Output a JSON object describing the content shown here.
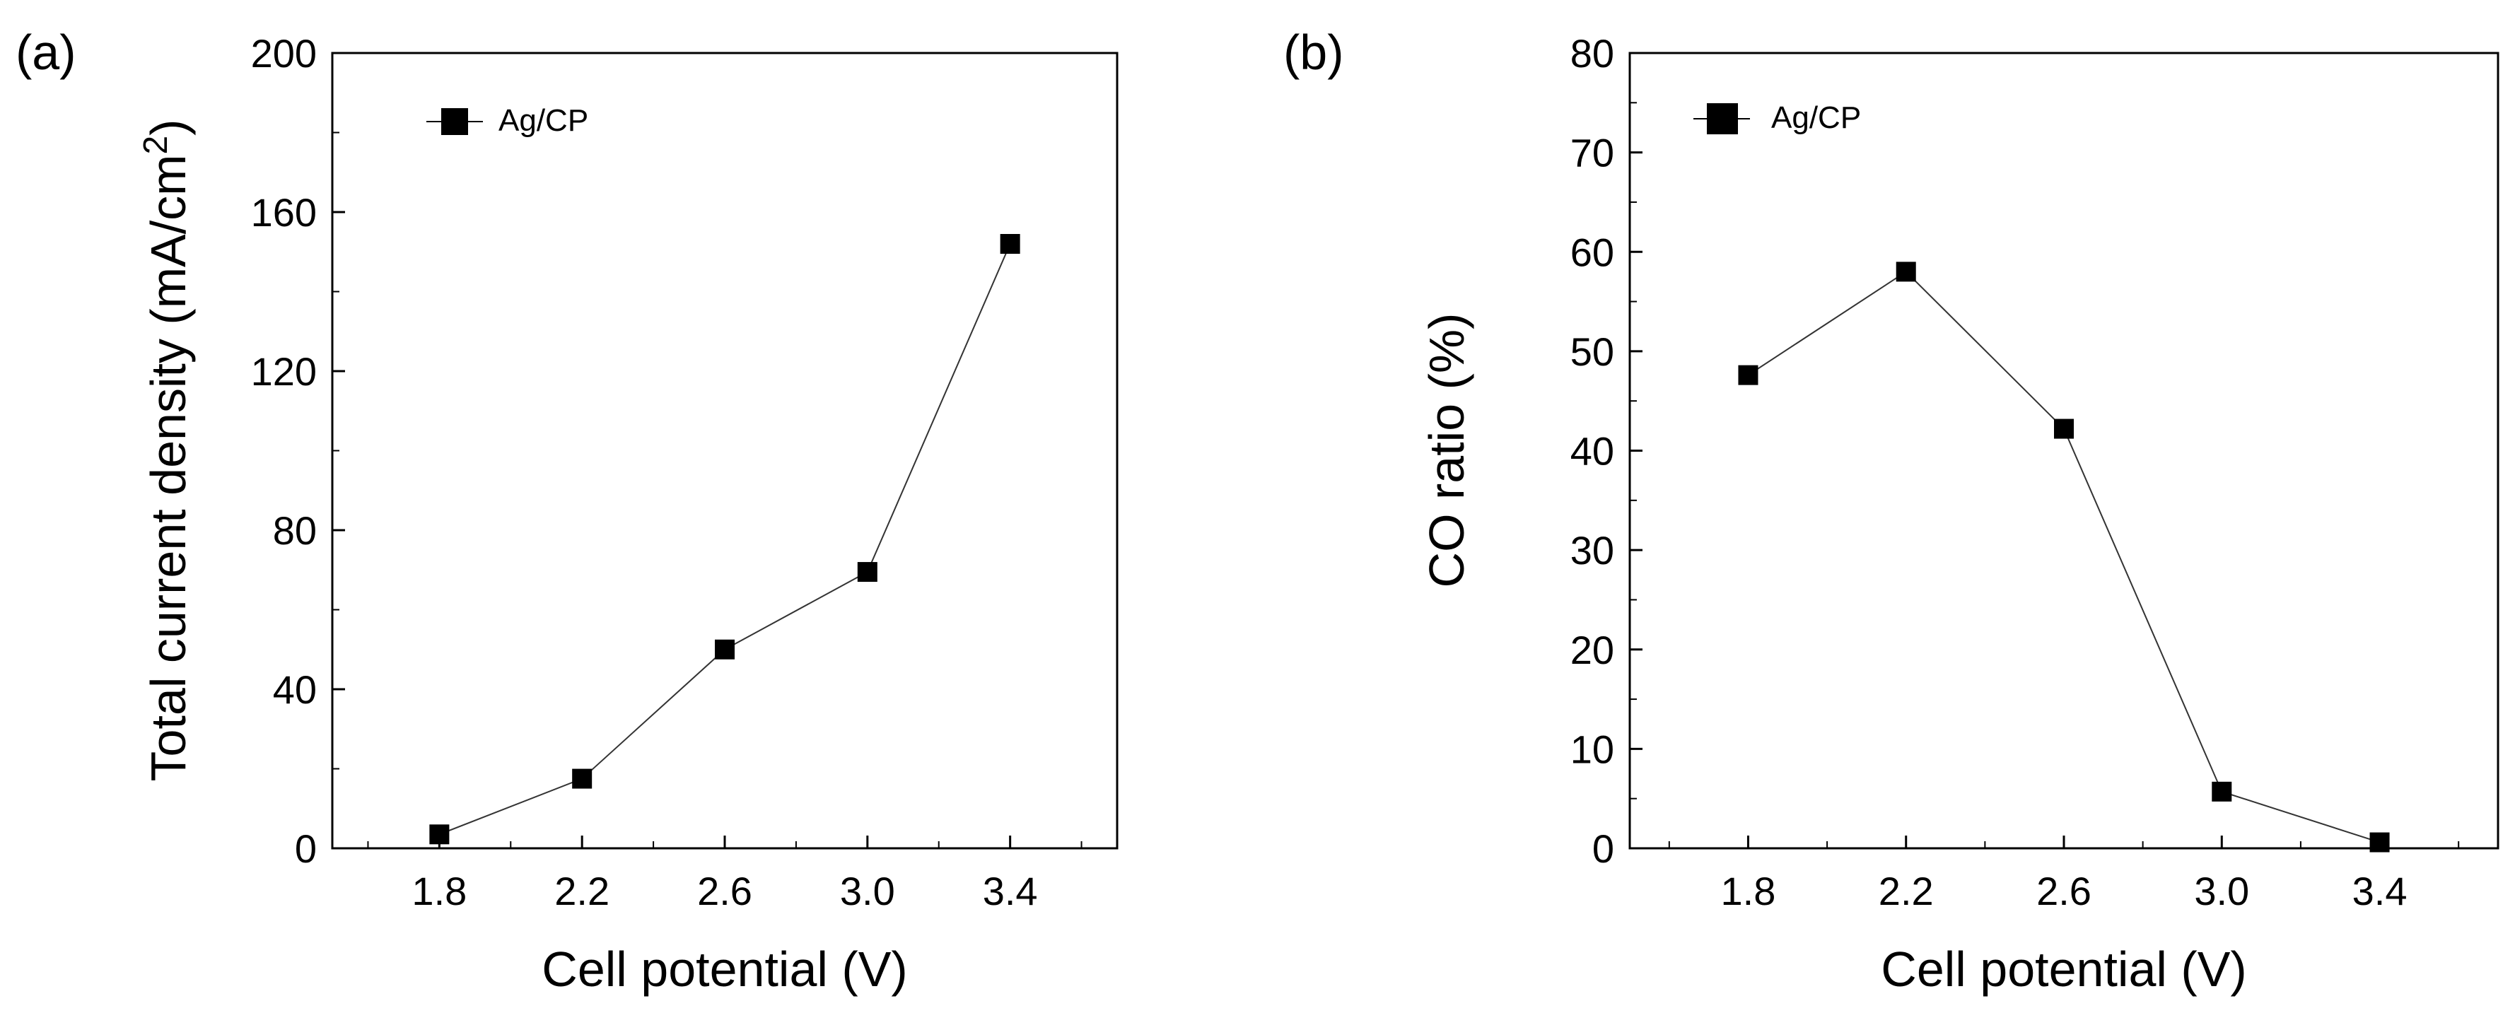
{
  "chart_data": [
    {
      "type": "line",
      "panel_label": "(a)",
      "title": "",
      "xlabel": "Cell potential (V)",
      "ylabel_main": "Total current density (mA/cm",
      "ylabel_superscript": "2",
      "ylabel_close": ")",
      "x_ticks": [
        "1.8",
        "2.2",
        "2.6",
        "3.0",
        "3.4"
      ],
      "y_ticks": [
        "0",
        "40",
        "80",
        "120",
        "160",
        "200"
      ],
      "xlim": [
        1.5,
        3.7
      ],
      "ylim": [
        0,
        200
      ],
      "legend": {
        "position": "top-left",
        "entries": [
          "Ag/CP"
        ]
      },
      "series": [
        {
          "name": "Ag/CP",
          "marker": "square",
          "x": [
            1.8,
            2.2,
            2.6,
            3.0,
            3.4
          ],
          "values": [
            3.5,
            17.5,
            50,
            69.5,
            152
          ]
        }
      ]
    },
    {
      "type": "line",
      "panel_label": "(b)",
      "title": "",
      "xlabel": "Cell potential (V)",
      "ylabel_main": "CO ratio (%)",
      "ylabel_superscript": "",
      "ylabel_close": "",
      "x_ticks": [
        "1.8",
        "2.2",
        "2.6",
        "3.0",
        "3.4"
      ],
      "y_ticks": [
        "0",
        "10",
        "20",
        "30",
        "40",
        "50",
        "60",
        "70",
        "80"
      ],
      "xlim": [
        1.5,
        3.7
      ],
      "ylim": [
        0,
        80
      ],
      "legend": {
        "position": "top-left",
        "entries": [
          "Ag/CP"
        ]
      },
      "series": [
        {
          "name": "Ag/CP",
          "marker": "square",
          "x": [
            1.8,
            2.2,
            2.6,
            3.0,
            3.4
          ],
          "values": [
            47.6,
            58,
            42.2,
            5.7,
            0.6
          ]
        }
      ]
    }
  ]
}
